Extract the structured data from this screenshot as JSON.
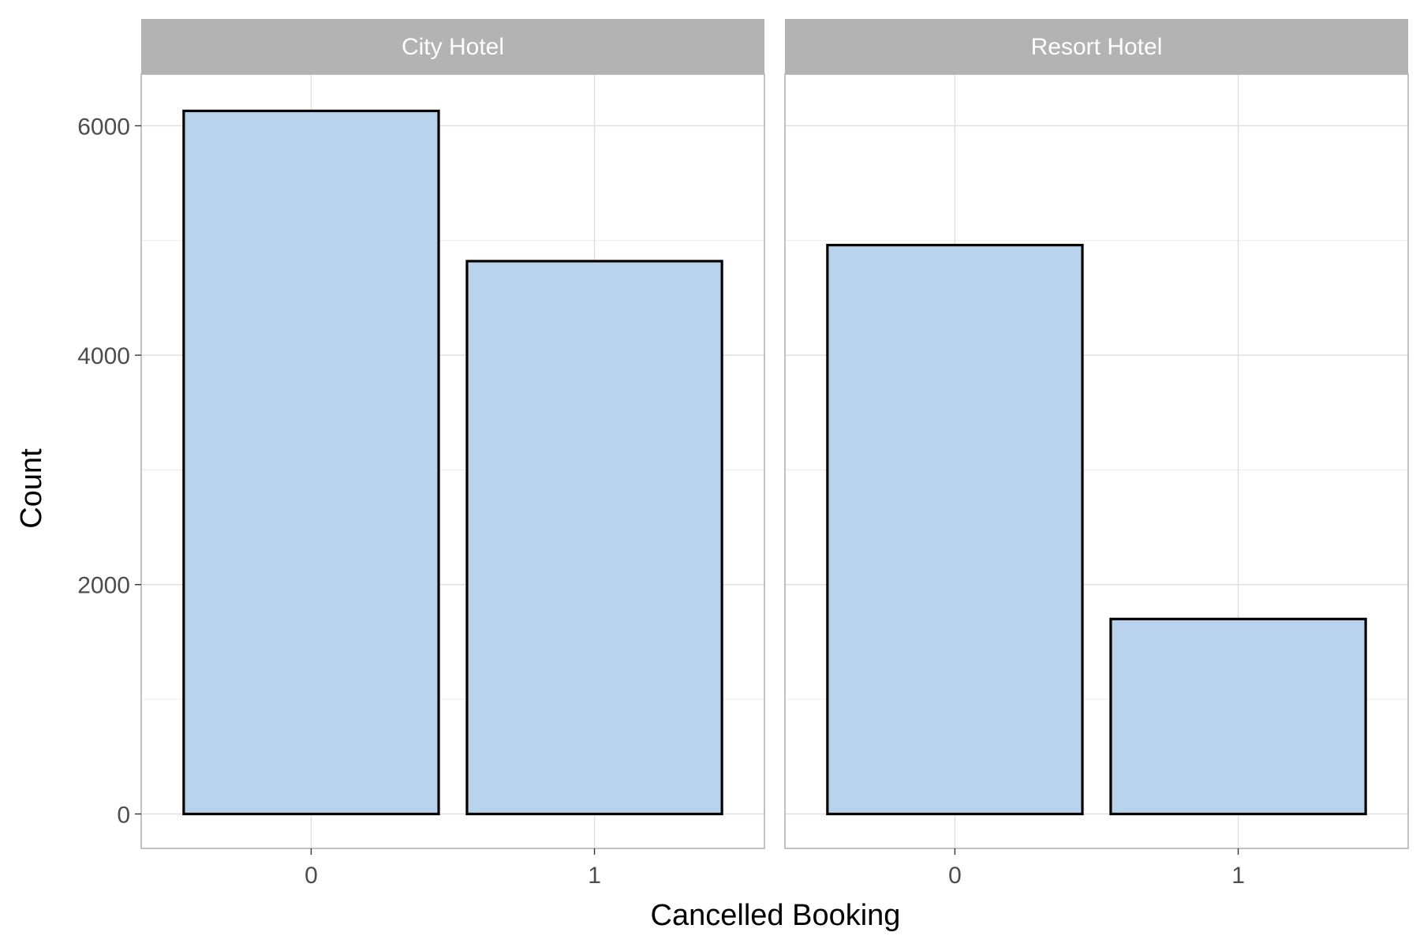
{
  "chart_data": {
    "type": "bar",
    "facet_variable": "hotel",
    "facets": [
      {
        "label": "City Hotel",
        "categories": [
          "0",
          "1"
        ],
        "values": [
          6130,
          4820
        ]
      },
      {
        "label": "Resort Hotel",
        "categories": [
          "0",
          "1"
        ],
        "values": [
          4960,
          1700
        ]
      }
    ],
    "xlabel": "Cancelled Booking",
    "ylabel": "Count",
    "ylim": [
      -300,
      6450
    ],
    "y_ticks": [
      0,
      2000,
      4000,
      6000
    ],
    "y_minor_ticks": [
      1000,
      3000,
      5000
    ],
    "grid": true,
    "legend": "none",
    "colors": {
      "bar_fill": "#bad3ec",
      "bar_stroke": "#000000",
      "strip_fill": "#b3b3b3",
      "grid_major": "#dedede",
      "grid_minor": "#ececec",
      "panel_border": "#b3b3b3"
    }
  }
}
